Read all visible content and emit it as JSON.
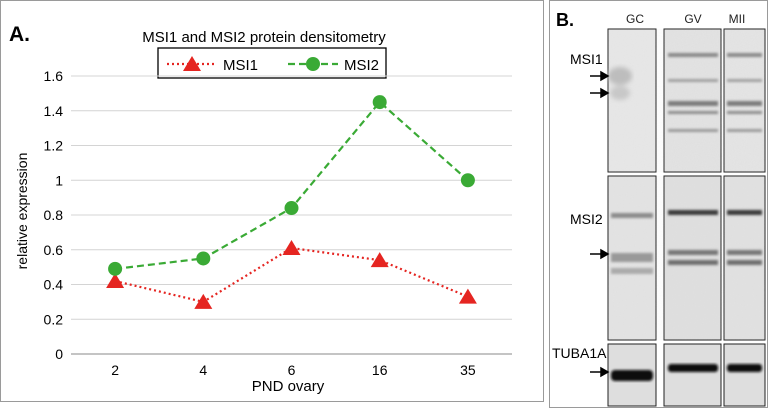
{
  "panel_a": {
    "label": "A.",
    "chart_data": {
      "type": "line",
      "title": "MSI1 and MSI2 protein densitometry",
      "xlabel": "PND ovary",
      "ylabel": "relative expression",
      "categories": [
        "2",
        "4",
        "6",
        "16",
        "35"
      ],
      "ylim": [
        0,
        1.6
      ],
      "yticks": [
        "0",
        "0.2",
        "0.4",
        "0.6",
        "0.8",
        "1",
        "1.2",
        "1.4",
        "1.6"
      ],
      "grid": true,
      "legend_position": "top",
      "series": [
        {
          "name": "MSI1",
          "values": [
            0.42,
            0.3,
            0.61,
            0.54,
            0.33
          ],
          "color": "#e52521",
          "marker": "triangle",
          "line": "dotted"
        },
        {
          "name": "MSI2",
          "values": [
            0.49,
            0.55,
            0.84,
            1.45,
            1.0
          ],
          "color": "#3aaa35",
          "marker": "circle",
          "line": "dashed"
        }
      ]
    }
  },
  "panel_b": {
    "label": "B.",
    "lanes": [
      "GC",
      "GV",
      "MII"
    ],
    "rows": [
      "MSI1",
      "MSI2",
      "TUBA1A"
    ]
  }
}
